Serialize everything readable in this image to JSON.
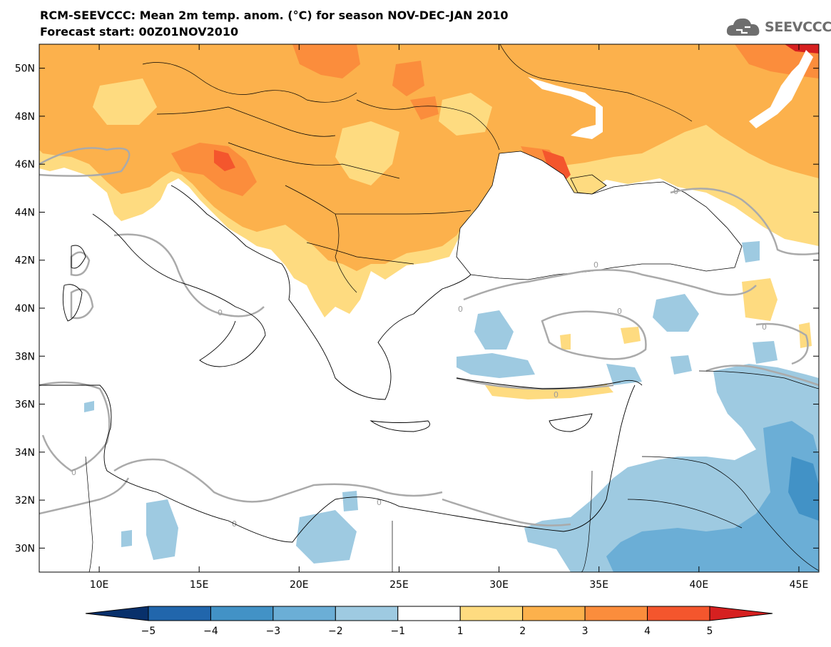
{
  "header": {
    "title_line1": "RCM-SEEVCCC: Mean 2m temp. anom. (°C) for season NOV-DEC-JAN 2010",
    "title_line2": "Forecast start: 00Z01NOV2010",
    "logo_text": "SEEVCCC"
  },
  "map": {
    "lon_range": [
      7,
      46
    ],
    "lat_range": [
      29,
      51
    ],
    "lon_ticks": [
      "10E",
      "15E",
      "20E",
      "25E",
      "30E",
      "35E",
      "40E",
      "45E"
    ],
    "lon_tick_values": [
      10,
      15,
      20,
      25,
      30,
      35,
      40,
      45
    ],
    "lat_ticks": [
      "50N",
      "48N",
      "46N",
      "44N",
      "42N",
      "40N",
      "38N",
      "36N",
      "34N",
      "32N",
      "30N"
    ],
    "lat_tick_values": [
      50,
      48,
      46,
      44,
      42,
      40,
      38,
      36,
      34,
      32,
      30
    ],
    "contour_label": "0",
    "colors": {
      "warm_1_2": "#fedb80",
      "warm_2_3": "#fcb14c",
      "warm_3_4": "#fb8d3c",
      "warm_4_5": "#f4562d",
      "warm_gt5": "#d62020",
      "cool_1_2": "#9ecae1",
      "cool_2_3": "#6baed6",
      "cool_3_4": "#4292c6",
      "cool_4_5": "#2166ac",
      "cool_lt5": "#08306b",
      "neutral": "#ffffff",
      "zero_contour": "#aaaaaa",
      "coastline": "#000000"
    }
  },
  "colorbar": {
    "tick_labels": [
      "−5",
      "−4",
      "−3",
      "−2",
      "−1",
      "1",
      "2",
      "3",
      "4",
      "5"
    ],
    "colors": [
      "#08306b",
      "#2166ac",
      "#4292c6",
      "#6baed6",
      "#9ecae1",
      "#ffffff",
      "#fedb80",
      "#fcb14c",
      "#fb8d3c",
      "#f4562d",
      "#d62020"
    ]
  }
}
